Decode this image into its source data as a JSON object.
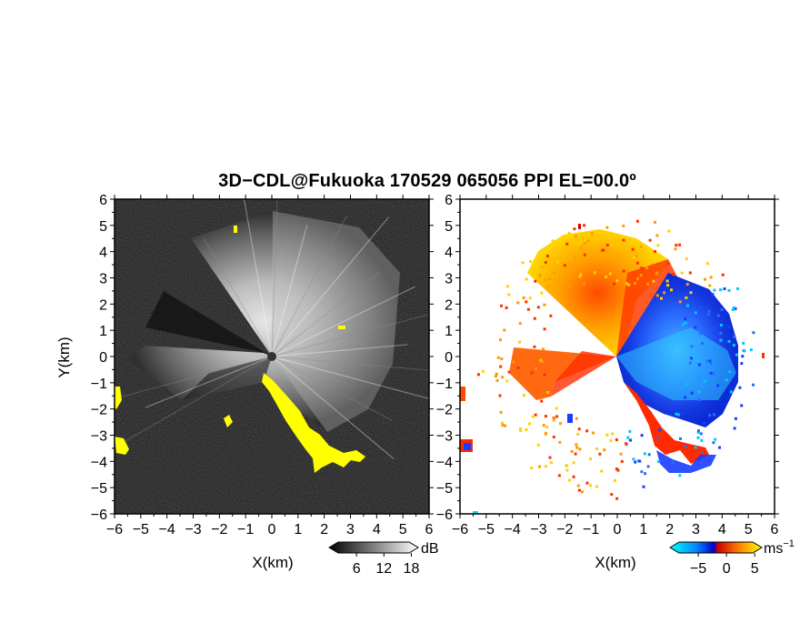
{
  "figure": {
    "title": "3D−CDL@Fukuoka 170529 065056 PPI EL=00.0º"
  },
  "chart_data": [
    {
      "type": "heatmap",
      "panel": "left",
      "xlabel": "X(km)",
      "ylabel": "Y(km)",
      "xlim": [
        -6,
        6
      ],
      "ylim": [
        -6,
        6
      ],
      "x_ticks": [
        -6,
        -5,
        -4,
        -3,
        -2,
        -1,
        0,
        1,
        2,
        3,
        4,
        5,
        6
      ],
      "y_ticks": [
        -6,
        -5,
        -4,
        -3,
        -2,
        -1,
        0,
        1,
        2,
        3,
        4,
        5,
        6
      ],
      "x_tick_labels": [
        "−6",
        "−5",
        "−4",
        "−3",
        "−2",
        "−1",
        "0",
        "1",
        "2",
        "3",
        "4",
        "5",
        "6"
      ],
      "y_tick_labels": [
        "−6",
        "−5",
        "−4",
        "−3",
        "−2",
        "−1",
        "0",
        "1",
        "2",
        "3",
        "4",
        "5",
        "6"
      ],
      "colorbar": {
        "unit": "dB",
        "ticks": [
          6,
          12,
          18
        ],
        "tick_labels": [
          "6",
          "12",
          "18"
        ],
        "colors": [
          "#000000",
          "#ffffff"
        ]
      },
      "flag_color": "#ffff00"
    },
    {
      "type": "heatmap",
      "panel": "right",
      "xlabel": "X(km)",
      "xlim": [
        -6,
        6
      ],
      "ylim": [
        -6,
        6
      ],
      "x_ticks": [
        -6,
        -5,
        -4,
        -3,
        -2,
        -1,
        0,
        1,
        2,
        3,
        4,
        5,
        6
      ],
      "y_ticks": [
        -6,
        -5,
        -4,
        -3,
        -2,
        -1,
        0,
        1,
        2,
        3,
        4,
        5,
        6
      ],
      "x_tick_labels": [
        "−6",
        "−5",
        "−4",
        "−3",
        "−2",
        "−1",
        "0",
        "1",
        "2",
        "3",
        "4",
        "5",
        "6"
      ],
      "y_tick_labels": [
        "−6",
        "−5",
        "−4",
        "−3",
        "−2",
        "−1",
        "0",
        "1",
        "2",
        "3",
        "4",
        "5",
        "6"
      ],
      "colorbar": {
        "unit": "ms",
        "unit_exponent": "−1",
        "ticks": [
          -5,
          0,
          5
        ],
        "tick_labels": [
          "−5",
          "0",
          "5"
        ],
        "colors": [
          "#00ffff",
          "#0080ff",
          "#0000cc",
          "#cc0000",
          "#ff8000",
          "#ffff00"
        ]
      }
    }
  ]
}
